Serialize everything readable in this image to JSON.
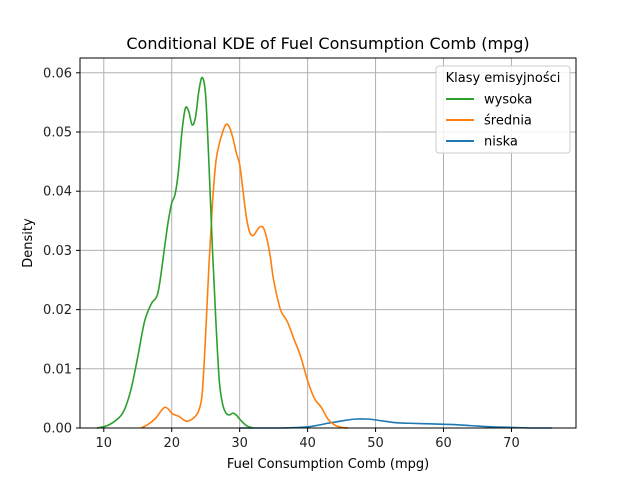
{
  "chart_data": {
    "type": "line",
    "title": "Conditional KDE of Fuel Consumption Comb (mpg)",
    "xlabel": "Fuel Consumption Comb (mpg)",
    "ylabel": "Density",
    "xlim": [
      6.5,
      79.5
    ],
    "ylim": [
      0,
      0.0625
    ],
    "xticks": [
      10,
      20,
      30,
      40,
      50,
      60,
      70
    ],
    "yticks": [
      0.0,
      0.01,
      0.02,
      0.03,
      0.04,
      0.05,
      0.06
    ],
    "ytick_labels": [
      "0.00",
      "0.01",
      "0.02",
      "0.03",
      "0.04",
      "0.05",
      "0.06"
    ],
    "grid": true,
    "legend": {
      "title": "Klasy emisyjności",
      "placement": "top-right"
    },
    "series": [
      {
        "name": "wysoka",
        "color": "#2ca02c",
        "x": [
          9.0,
          10.5,
          12.0,
          13.0,
          14.0,
          15.0,
          16.0,
          17.0,
          18.0,
          19.0,
          19.5,
          20.0,
          20.5,
          21.0,
          21.5,
          22.0,
          22.5,
          23.0,
          23.5,
          24.0,
          24.5,
          25.0,
          25.5,
          26.0,
          26.5,
          27.0,
          27.5,
          28.0,
          28.5,
          29.0,
          29.5,
          30.0,
          31.0,
          32.0
        ],
        "y": [
          0.0,
          0.0004,
          0.0015,
          0.003,
          0.0065,
          0.012,
          0.018,
          0.021,
          0.023,
          0.031,
          0.035,
          0.038,
          0.0395,
          0.0435,
          0.05,
          0.054,
          0.0535,
          0.0512,
          0.0525,
          0.057,
          0.0592,
          0.056,
          0.044,
          0.03,
          0.018,
          0.008,
          0.004,
          0.0025,
          0.0022,
          0.0025,
          0.0022,
          0.0015,
          0.0004,
          0.0
        ]
      },
      {
        "name": "średnia",
        "color": "#ff7f0e",
        "x": [
          15.5,
          16.5,
          17.5,
          18.0,
          18.5,
          19.0,
          19.5,
          20.0,
          20.5,
          21.0,
          21.5,
          22.0,
          22.5,
          23.0,
          23.5,
          24.0,
          24.5,
          25.0,
          25.5,
          26.0,
          26.5,
          27.0,
          27.5,
          28.0,
          28.5,
          29.0,
          29.5,
          30.0,
          30.5,
          31.0,
          31.5,
          32.0,
          32.5,
          33.0,
          33.5,
          34.0,
          34.5,
          35.0,
          36.0,
          37.0,
          38.0,
          39.0,
          40.0,
          41.0,
          42.0,
          43.0,
          44.0,
          45.0,
          46.0
        ],
        "y": [
          0.0,
          0.0006,
          0.0015,
          0.0022,
          0.003,
          0.0035,
          0.0032,
          0.0025,
          0.0022,
          0.002,
          0.0016,
          0.0012,
          0.0012,
          0.0015,
          0.002,
          0.003,
          0.006,
          0.016,
          0.028,
          0.038,
          0.045,
          0.048,
          0.05,
          0.0513,
          0.0508,
          0.049,
          0.0465,
          0.0445,
          0.04,
          0.0355,
          0.033,
          0.0325,
          0.0333,
          0.034,
          0.0338,
          0.032,
          0.029,
          0.025,
          0.02,
          0.018,
          0.015,
          0.012,
          0.008,
          0.005,
          0.0035,
          0.0015,
          0.0005,
          0.0001,
          0.0
        ]
      },
      {
        "name": "niska",
        "color": "#1f77b4",
        "x": [
          30.0,
          36.0,
          40.0,
          43.0,
          45.0,
          47.0,
          49.0,
          51.0,
          53.0,
          55.0,
          58.0,
          61.0,
          64.0,
          67.0,
          70.0,
          73.0,
          76.0
        ],
        "y": [
          0.0,
          0.0,
          0.0002,
          0.0008,
          0.0012,
          0.0015,
          0.0015,
          0.0012,
          0.0009,
          0.0008,
          0.0007,
          0.0006,
          0.0004,
          0.0002,
          0.0001,
          0.0,
          0.0
        ]
      }
    ]
  }
}
